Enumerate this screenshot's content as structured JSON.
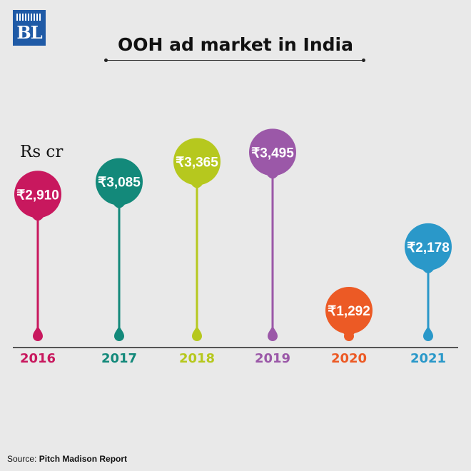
{
  "brand": {
    "logo_text": "BL"
  },
  "title": "OOH ad market in India",
  "unit_label": "Rs cr",
  "source": {
    "label": "Source:",
    "name": "Pitch Madison Report"
  },
  "chart_data": {
    "type": "bar",
    "style": "lollipop",
    "title": "OOH ad market in India",
    "ylabel": "Rs cr",
    "xlabel": "",
    "categories": [
      "2016",
      "2017",
      "2018",
      "2019",
      "2020",
      "2021"
    ],
    "values": [
      2910,
      3085,
      3365,
      3495,
      1292,
      2178
    ],
    "value_labels": [
      "₹2,910",
      "₹3,085",
      "₹3,365",
      "₹3,495",
      "₹1,292",
      "₹2,178"
    ],
    "colors": [
      "#c8185e",
      "#13897a",
      "#b6c81e",
      "#9b58a8",
      "#ec5a25",
      "#2a98c9"
    ],
    "ylim": [
      0,
      3600
    ],
    "grid": false,
    "legend": "none"
  }
}
